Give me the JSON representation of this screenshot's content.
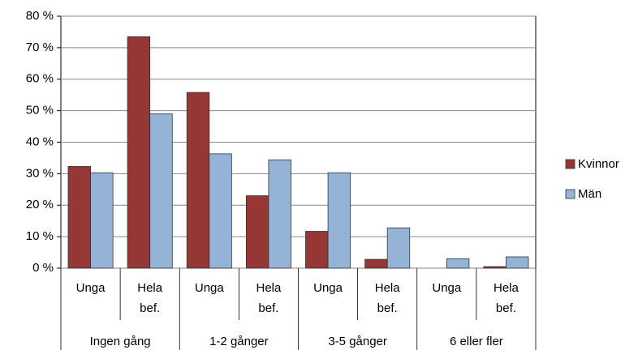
{
  "chart_data": {
    "type": "bar",
    "categories": [
      "Unga",
      "Hela bef.",
      "Unga",
      "Hela bef.",
      "Unga",
      "Hela bef.",
      "Unga",
      "Hela bef."
    ],
    "groups": [
      "Ingen gång",
      "1-2 gånger",
      "3-5 gånger",
      "6 eller fler"
    ],
    "series": [
      {
        "name": "Kvinnor",
        "color": "#953735",
        "values": [
          32.3,
          73.5,
          55.8,
          23,
          11.7,
          2.8,
          0,
          0.5
        ]
      },
      {
        "name": "Män",
        "color": "#95B3D7",
        "values": [
          30.3,
          49,
          36.3,
          34.4,
          30.3,
          12.8,
          3,
          3.6
        ]
      }
    ],
    "ylim": [
      0,
      80
    ],
    "yticks": [
      {
        "value": 0,
        "label": "0 %"
      },
      {
        "value": 10,
        "label": "10 %"
      },
      {
        "value": 20,
        "label": "20 %"
      },
      {
        "value": 30,
        "label": "30 %"
      },
      {
        "value": 40,
        "label": "40 %"
      },
      {
        "value": 50,
        "label": "50 %"
      },
      {
        "value": 60,
        "label": "60 %"
      },
      {
        "value": 70,
        "label": "70 %"
      },
      {
        "value": 80,
        "label": "80 %"
      }
    ],
    "grid": true,
    "legend": "right"
  }
}
